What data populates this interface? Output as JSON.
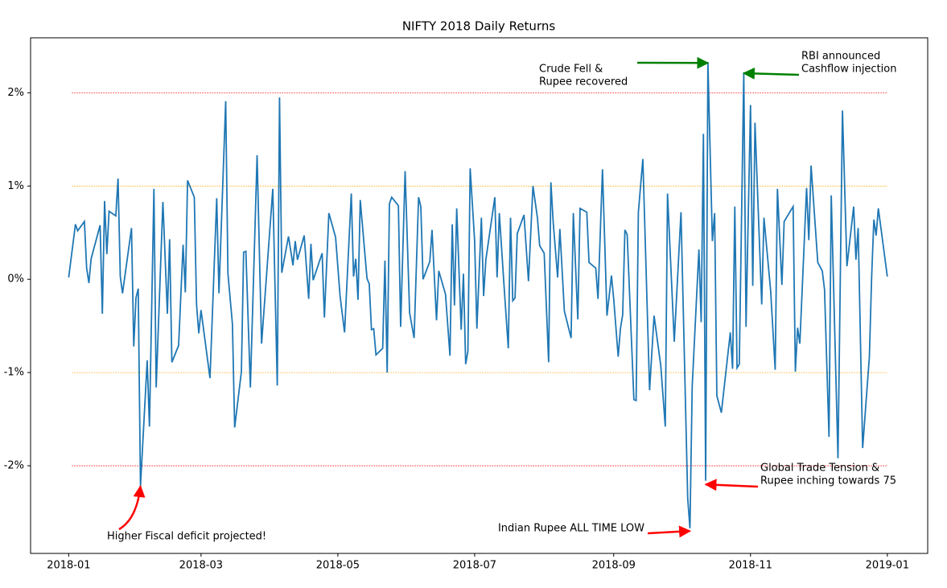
{
  "chart_data": {
    "type": "line",
    "title": "NIFTY 2018 Daily Returns",
    "x": [
      0,
      3,
      4,
      7,
      8,
      9,
      10,
      14,
      15,
      16,
      17,
      18,
      21,
      22,
      23,
      24,
      28,
      29,
      30,
      31,
      32,
      35,
      36,
      38,
      39,
      42,
      44,
      45,
      46,
      49,
      51,
      52,
      53,
      56,
      57,
      58,
      59,
      63,
      66,
      67,
      70,
      71,
      73,
      74,
      77,
      78,
      79,
      81,
      84,
      86,
      91,
      93,
      94,
      95,
      98,
      100,
      101,
      102,
      105,
      107,
      108,
      109,
      113,
      114,
      116,
      119,
      121,
      123,
      126,
      127,
      128,
      129,
      130,
      133,
      134,
      135,
      136,
      137,
      140,
      141,
      142,
      143,
      144,
      147,
      148,
      150,
      152,
      154,
      156,
      157,
      158,
      161,
      162,
      164,
      165,
      168,
      170,
      171,
      172,
      173,
      175,
      176,
      177,
      178,
      179,
      181,
      182,
      184,
      185,
      186,
      190,
      191,
      192,
      194,
      196,
      197,
      198,
      199,
      200,
      203,
      205,
      207,
      209,
      210,
      212,
      214,
      215,
      216,
      218,
      219,
      221,
      224,
      225,
      227,
      228,
      231,
      232,
      235,
      236,
      238,
      240,
      242,
      243,
      245,
      246,
      247,
      248,
      249,
      252,
      253,
      254,
      256,
      259,
      261,
      264,
      266,
      267,
      270,
      273,
      276,
      277,
      278,
      281,
      282,
      283,
      284,
      285,
      287,
      288,
      289,
      291,
      295,
      296,
      297,
      298,
      299,
      301,
      302,
      304,
      305,
      306,
      309,
      310,
      313,
      315,
      316,
      318,
      319,
      323,
      324,
      325,
      326,
      329,
      330,
      331,
      334,
      336,
      337,
      339,
      340,
      343,
      345,
      347,
      350,
      351,
      352,
      354,
      357,
      358,
      359,
      360,
      361,
      365
    ],
    "series": [
      {
        "color": "#1f77b4",
        "values": [
          0.02,
          0.59,
          0.52,
          0.62,
          0.12,
          -0.04,
          0.22,
          0.58,
          -0.37,
          0.84,
          0.27,
          0.73,
          0.68,
          1.08,
          0.03,
          -0.15,
          0.55,
          -0.72,
          -0.2,
          -0.1,
          -2.22,
          -0.87,
          -1.58,
          0.97,
          -1.16,
          0.83,
          -0.37,
          0.43,
          -0.89,
          -0.71,
          0.37,
          -0.14,
          1.06,
          0.88,
          -0.27,
          -0.58,
          -0.33,
          -1.06,
          0.87,
          -0.15,
          1.91,
          0.06,
          -0.48,
          -1.59,
          -0.99,
          0.29,
          0.3,
          -1.16,
          1.33,
          -0.69,
          0.97,
          -1.14,
          1.95,
          0.07,
          0.46,
          0.15,
          0.41,
          0.21,
          0.47,
          -0.21,
          0.38,
          -0.01,
          0.28,
          -0.41,
          0.71,
          0.45,
          -0.18,
          -0.57,
          0.92,
          0.03,
          0.22,
          -0.22,
          0.85,
          0.01,
          -0.05,
          -0.54,
          -0.53,
          -0.81,
          -0.74,
          0.2,
          -1.0,
          0.81,
          0.88,
          0.79,
          -0.51,
          1.16,
          -0.36,
          -0.63,
          0.88,
          0.78,
          0.0,
          0.19,
          0.53,
          -0.44,
          0.09,
          -0.16,
          -0.82,
          0.59,
          -0.28,
          0.76,
          -0.54,
          0.06,
          -0.91,
          -0.77,
          1.19,
          0.41,
          -0.53,
          0.66,
          -0.18,
          0.21,
          0.88,
          0.02,
          0.71,
          -0.03,
          -0.74,
          0.66,
          -0.23,
          -0.2,
          0.49,
          0.69,
          -0.02,
          1.0,
          0.66,
          0.36,
          0.28,
          -0.89,
          1.04,
          0.62,
          0.02,
          0.54,
          -0.34,
          -0.63,
          0.71,
          -0.43,
          0.76,
          0.72,
          0.18,
          0.12,
          -0.21,
          1.18,
          -0.39,
          0.04,
          -0.21,
          -0.83,
          -0.53,
          -0.38,
          0.53,
          0.48,
          -1.29,
          -1.3,
          0.72,
          1.29,
          -1.19,
          -0.39,
          -0.93,
          -1.58,
          0.92,
          -0.67,
          0.72,
          -2.35,
          -2.67,
          -1.15,
          0.32,
          -0.46,
          1.56,
          -2.16,
          2.33,
          0.41,
          0.71,
          -1.25,
          -1.43,
          -0.57,
          -0.96,
          0.78,
          -0.95,
          -0.91,
          2.22,
          -0.51,
          1.87,
          -0.07,
          1.68,
          -0.27,
          0.66,
          -0.13,
          -0.97,
          0.97,
          -0.06,
          0.62,
          0.78,
          -0.99,
          -0.52,
          -0.69,
          0.98,
          0.42,
          1.22,
          0.18,
          0.09,
          -0.11,
          -1.69,
          0.9,
          -1.92,
          1.81,
          0.14,
          0.78,
          0.21,
          0.55,
          -1.81,
          -0.83,
          0.02,
          0.64,
          0.47,
          0.76,
          0.03
        ]
      }
    ],
    "xlim": [
      -17,
      383
    ],
    "xticks": [
      {
        "value": 0,
        "label": "2018-01"
      },
      {
        "value": 59,
        "label": "2018-03"
      },
      {
        "value": 120,
        "label": "2018-05"
      },
      {
        "value": 181,
        "label": "2018-07"
      },
      {
        "value": 243,
        "label": "2018-09"
      },
      {
        "value": 304,
        "label": "2018-11"
      },
      {
        "value": 365,
        "label": "2019-01"
      }
    ],
    "ylim": [
      -2.94,
      2.59
    ],
    "yticks": [
      {
        "value": -2,
        "label": "-2%"
      },
      {
        "value": -1,
        "label": "-1%"
      },
      {
        "value": 0,
        "label": "0%"
      },
      {
        "value": 1,
        "label": "1%"
      },
      {
        "value": 2,
        "label": "2%"
      }
    ],
    "hlines": [
      {
        "value": 2,
        "color": "red"
      },
      {
        "value": 1,
        "color": "orange"
      },
      {
        "value": -1,
        "color": "orange"
      },
      {
        "value": -2,
        "color": "red"
      }
    ],
    "annotations": [
      {
        "text": [
          "Higher Fiscal deficit projected!"
        ],
        "xy": [
          32,
          -2.22
        ],
        "color": "red"
      },
      {
        "text": [
          "Indian Rupee ALL TIME LOW"
        ],
        "xy": [
          277,
          -2.7
        ],
        "color": "red"
      },
      {
        "text": [
          "Global Trade Tension &",
          "Rupee inching towards 75"
        ],
        "xy": [
          284,
          -2.2
        ],
        "color": "red"
      },
      {
        "text": [
          "Crude Fell &",
          "Rupee recovered"
        ],
        "xy": [
          285,
          2.32
        ],
        "color": "green"
      },
      {
        "text": [
          "RBI announced",
          "Cashflow injection"
        ],
        "xy": [
          301,
          2.21
        ],
        "color": "green"
      }
    ]
  }
}
